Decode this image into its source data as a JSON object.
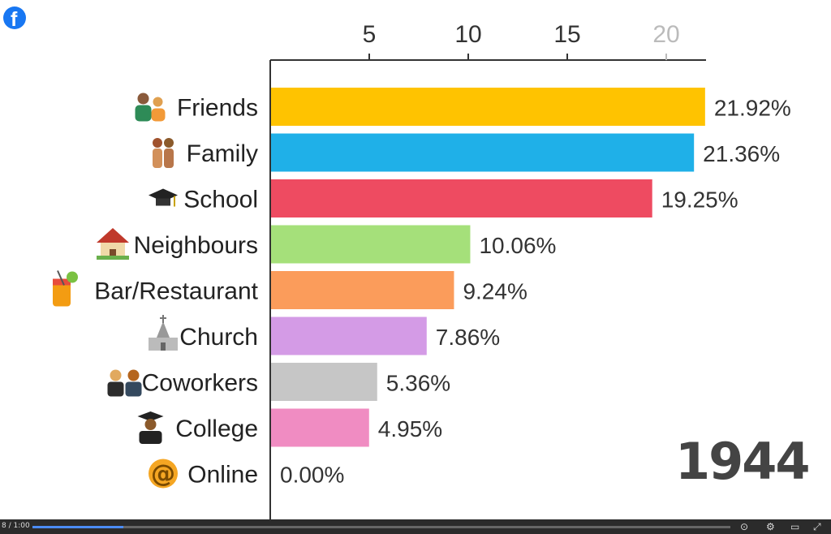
{
  "chart_data": {
    "type": "bar",
    "orientation": "horizontal",
    "categories": [
      "Friends",
      "Family",
      "School",
      "Neighbours",
      "Bar/Restaurant",
      "Church",
      "Coworkers",
      "College",
      "Online"
    ],
    "values": [
      21.92,
      21.36,
      19.25,
      10.06,
      9.24,
      7.86,
      5.36,
      4.95,
      0.0
    ],
    "value_labels": [
      "21.92%",
      "21.36%",
      "19.25%",
      "10.06%",
      "9.24%",
      "7.86%",
      "5.36%",
      "4.95%",
      "0.00%"
    ],
    "colors": [
      "#ffc300",
      "#1fb0e8",
      "#ee4b61",
      "#a5e07a",
      "#fb9c5b",
      "#d49be6",
      "#c6c6c6",
      "#f08cc2",
      "#ffffff"
    ],
    "icons": [
      "people-icon",
      "family-icon",
      "graduation-cap-icon",
      "house-icon",
      "cocktail-icon",
      "church-icon",
      "coworkers-icon",
      "graduate-icon",
      "at-sign-icon"
    ],
    "x_ticks": [
      5,
      10,
      15,
      20
    ],
    "xlim": [
      0,
      22
    ],
    "axis_position": "top",
    "grid": false,
    "legend": "none",
    "title": "",
    "xlabel": "",
    "ylabel": ""
  },
  "year_label": "1944",
  "player": {
    "time_label": "8 / 1:00",
    "progress": 0.13
  }
}
